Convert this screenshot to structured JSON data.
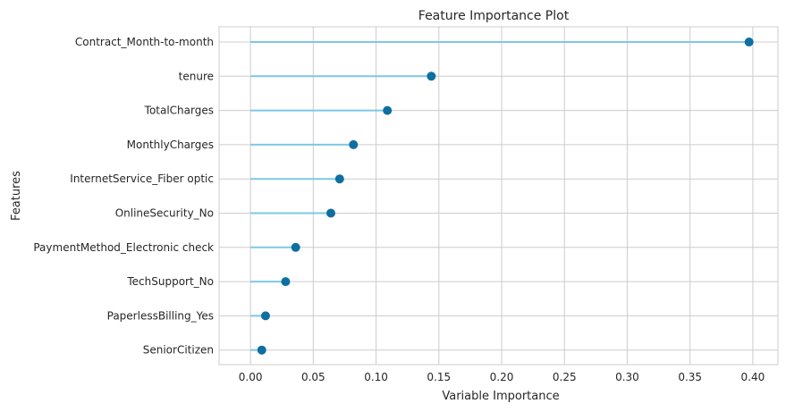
{
  "chart_data": {
    "type": "lollipop",
    "title": "Feature Importance Plot",
    "xlabel": "Variable Importance",
    "ylabel": "Features",
    "xlim": [
      -0.025,
      0.42
    ],
    "xticks": [
      "0.00",
      "0.05",
      "0.10",
      "0.15",
      "0.20",
      "0.25",
      "0.30",
      "0.35",
      "0.40"
    ],
    "grid": true,
    "colors": {
      "stem": "#7ec8e3",
      "marker": "#0e6fa0",
      "grid": "#cccccc",
      "frame": "#cccccc"
    },
    "categories": [
      "Contract_Month-to-month",
      "tenure",
      "TotalCharges",
      "MonthlyCharges",
      "InternetService_Fiber optic",
      "OnlineSecurity_No",
      "PaymentMethod_Electronic check",
      "TechSupport_No",
      "PaperlessBilling_Yes",
      "SeniorCitizen"
    ],
    "values": [
      0.397,
      0.144,
      0.109,
      0.082,
      0.071,
      0.064,
      0.036,
      0.028,
      0.012,
      0.009
    ]
  }
}
